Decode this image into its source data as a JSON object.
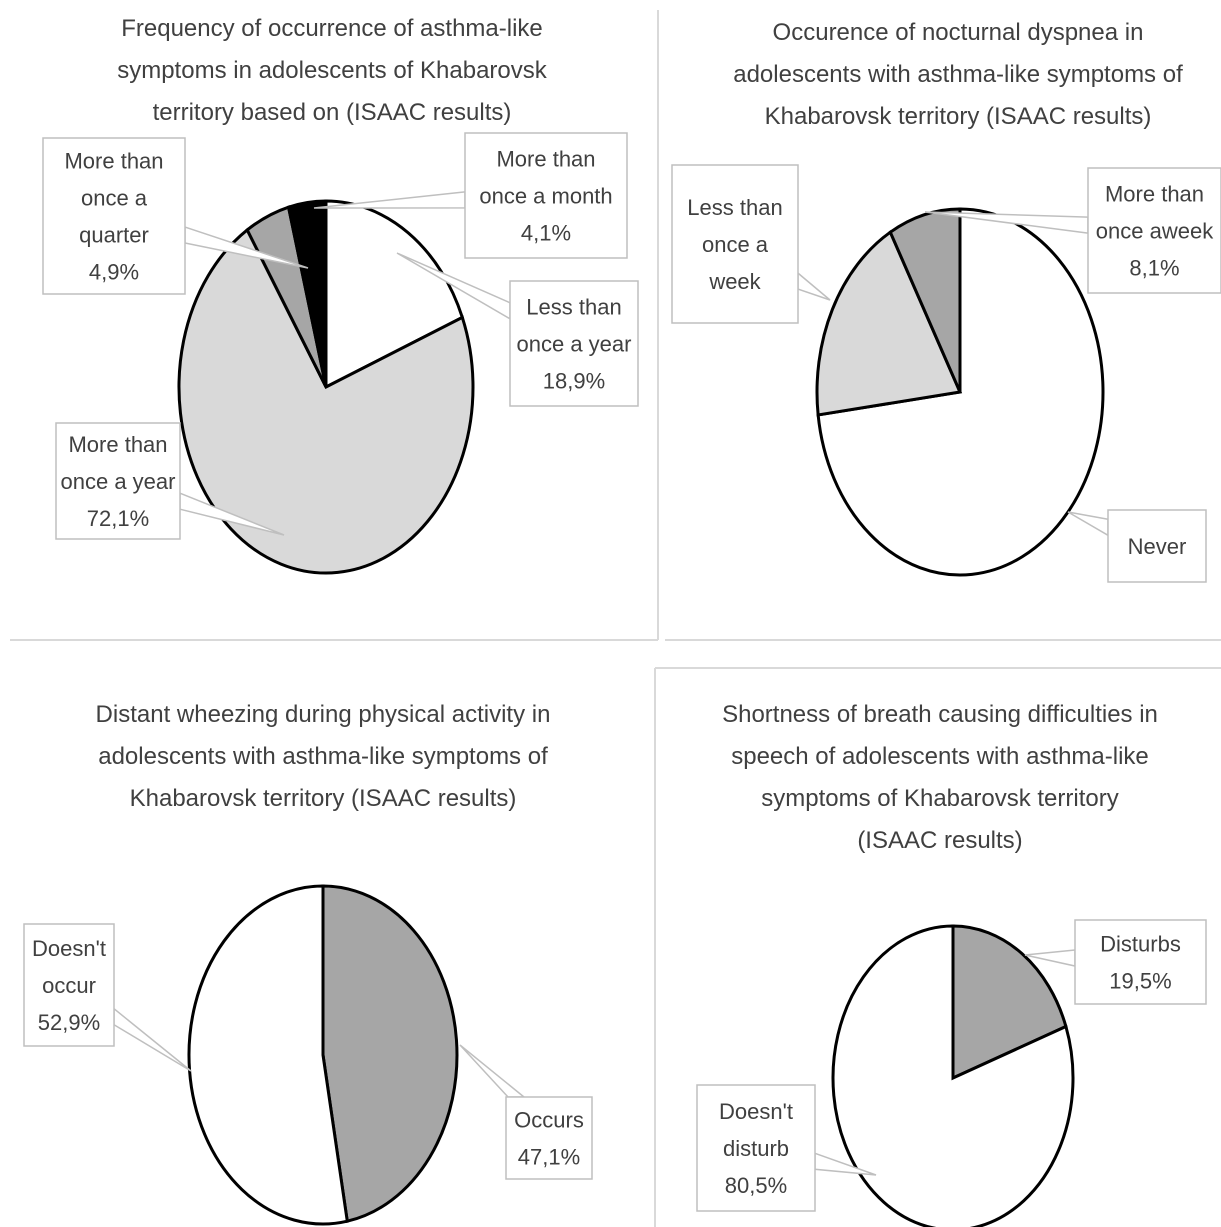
{
  "colors": {
    "black": "#000000",
    "light_gray": "#d9d9d9",
    "mid_gray": "#a6a6a6",
    "white": "#ffffff"
  },
  "chart_data": [
    {
      "type": "pie",
      "title": [
        "Frequency of occurrence of asthma-like",
        "symptoms in adolescents of Khabarovsk",
        "territory based on  (ISAAC results)"
      ],
      "slices": [
        {
          "label": [
            "Less than",
            "once a year",
            "18,9%"
          ],
          "value": 18.9,
          "color": "#ffffff"
        },
        {
          "label": [
            "More than",
            "once a year",
            "72,1%"
          ],
          "value": 72.1,
          "color": "#d9d9d9"
        },
        {
          "label": [
            "More than",
            "once a",
            "quarter",
            "4,9%"
          ],
          "value": 4.9,
          "color": "#a6a6a6"
        },
        {
          "label": [
            "More than",
            "once a month",
            "4,1%"
          ],
          "value": 4.1,
          "color": "#000000"
        }
      ]
    },
    {
      "type": "pie",
      "title": [
        "Occurence of nocturnal dyspnea in",
        "adolescents with asthma-like symptoms of",
        "Khabarovsk territory (ISAAC results)"
      ],
      "slices": [
        {
          "label": [
            "Never"
          ],
          "value": 73.0,
          "color": "#ffffff"
        },
        {
          "label": [
            "Less than",
            "once a",
            "week"
          ],
          "value": 18.9,
          "color": "#d9d9d9"
        },
        {
          "label": [
            "More than",
            "once aweek",
            "8,1%"
          ],
          "value": 8.1,
          "color": "#a6a6a6"
        }
      ]
    },
    {
      "type": "pie",
      "title": [
        "Distant wheezing during physical activity  in",
        "adolescents with asthma-like symptoms of",
        "Khabarovsk territory (ISAAC results)"
      ],
      "slices": [
        {
          "label": [
            "Occurs",
            "47,1%"
          ],
          "value": 47.1,
          "color": "#a6a6a6"
        },
        {
          "label": [
            "Doesn't",
            "occur",
            "52,9%"
          ],
          "value": 52.9,
          "color": "#ffffff"
        }
      ]
    },
    {
      "type": "pie",
      "title": [
        "Shortness of breath causing difficulties in",
        "speech of adolescents with asthma-like",
        "symptoms of Khabarovsk territory",
        "(ISAAC results)"
      ],
      "slices": [
        {
          "label": [
            "Disturbs",
            "19,5%"
          ],
          "value": 19.5,
          "color": "#a6a6a6"
        },
        {
          "label": [
            "Doesn't",
            "disturb",
            "80,5%"
          ],
          "value": 80.5,
          "color": "#ffffff"
        }
      ]
    }
  ]
}
